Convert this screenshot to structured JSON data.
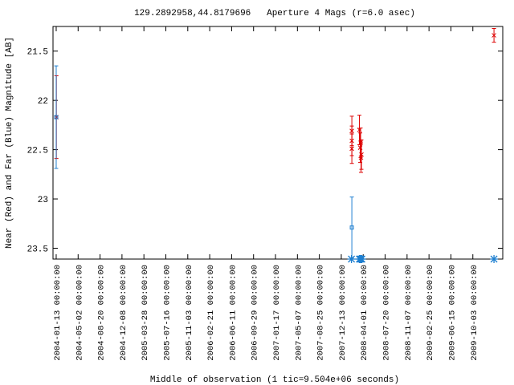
{
  "chart_data": {
    "type": "errorbar",
    "title": "129.2892958,44.8179696   Aperture 4 Mags (r=6.0 asec)",
    "x_label": "Middle of observation (1 tic=9.504e+06 seconds)",
    "y_label": "Near (Red) and Far (Blue) Magnitude [AB]",
    "xlim": [
      "2003-12-28",
      "2010-03-02"
    ],
    "xticks": [
      "2004-01-13 00:00:00",
      "2004-05-02 00:00:00",
      "2004-08-20 00:00:00",
      "2004-12-08 00:00:00",
      "2005-03-28 00:00:00",
      "2005-07-16 00:00:00",
      "2005-11-03 00:00:00",
      "2006-02-21 00:00:00",
      "2006-06-11 00:00:00",
      "2006-09-29 00:00:00",
      "2007-01-17 00:00:00",
      "2007-05-07 00:00:00",
      "2007-08-25 00:00:00",
      "2007-12-13 00:00:00",
      "2008-04-01 00:00:00",
      "2008-07-20 00:00:00",
      "2008-11-07 00:00:00",
      "2009-02-25 00:00:00",
      "2009-06-15 00:00:00",
      "2009-10-03 00:00:00"
    ],
    "ylim": [
      23.61,
      21.25
    ],
    "yticks": [
      21.5,
      22,
      22.5,
      23,
      23.5
    ],
    "series": [
      {
        "color": "#dd0000",
        "marker": "cross",
        "x": [
          "2004-01-14",
          "2008-02-04",
          "2008-02-04",
          "2008-02-04",
          "2008-03-13",
          "2008-03-17",
          "2008-03-19",
          "2008-03-21",
          "2008-03-23",
          "2010-01-17"
        ],
        "values": [
          22.17,
          22.31,
          22.41,
          22.49,
          22.3,
          22.48,
          22.43,
          22.58,
          22.55,
          21.34
        ],
        "errors": [
          0.42,
          0.15,
          0.15,
          0.15,
          0.15,
          0.15,
          0.15,
          0.15,
          0.15,
          0.07
        ]
      },
      {
        "color": "#1e7fd0",
        "marker": "square",
        "x": [
          "2004-01-13",
          "2008-02-04"
        ],
        "values": [
          22.17,
          23.29
        ],
        "errors": [
          0.52,
          0.31
        ]
      },
      {
        "color": "#1e7fd0",
        "marker": "star",
        "x": [
          "2008-02-02",
          "2008-03-13",
          "2008-03-17",
          "2008-03-21",
          "2008-03-25",
          "2010-01-17"
        ],
        "values": [
          23.61,
          23.61,
          23.61,
          23.61,
          23.61,
          23.61
        ]
      }
    ]
  }
}
